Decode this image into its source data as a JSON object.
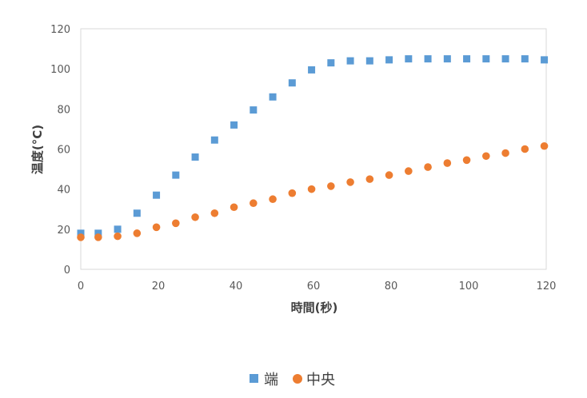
{
  "chart_data": {
    "type": "scatter",
    "xlabel": "時間(秒)",
    "ylabel": "温度(°C)",
    "xlim": [
      0,
      120
    ],
    "ylim": [
      0,
      120
    ],
    "xticks": [
      0,
      20,
      40,
      60,
      80,
      100,
      120
    ],
    "yticks": [
      0,
      20,
      40,
      60,
      80,
      100,
      120
    ],
    "grid": false,
    "legend_position": "bottom",
    "series": [
      {
        "name": "端",
        "marker": "square",
        "color": "#5B9BD5",
        "x": [
          0,
          4.5,
          9.5,
          14.5,
          19.5,
          24.5,
          29.5,
          34.5,
          39.5,
          44.5,
          49.5,
          54.5,
          59.5,
          64.5,
          69.5,
          74.5,
          79.5,
          84.5,
          89.5,
          94.5,
          99.5,
          104.5,
          109.5,
          114.5,
          119.5
        ],
        "y": [
          18,
          18,
          20,
          28,
          37,
          47,
          56,
          64.5,
          72,
          79.5,
          86,
          93,
          99.5,
          103,
          104,
          104,
          104.5,
          105,
          105,
          105,
          105,
          105,
          105,
          105,
          104.5
        ]
      },
      {
        "name": "中央",
        "marker": "circle",
        "color": "#ED7D31",
        "x": [
          0,
          4.5,
          9.5,
          14.5,
          19.5,
          24.5,
          29.5,
          34.5,
          39.5,
          44.5,
          49.5,
          54.5,
          59.5,
          64.5,
          69.5,
          74.5,
          79.5,
          84.5,
          89.5,
          94.5,
          99.5,
          104.5,
          109.5,
          114.5,
          119.5
        ],
        "y": [
          16,
          16,
          16.5,
          18,
          21,
          23,
          26,
          28,
          31,
          33,
          35,
          38,
          40,
          41.5,
          43.5,
          45,
          47,
          49,
          51,
          53,
          54.5,
          56.5,
          58,
          60,
          61.5
        ]
      }
    ]
  }
}
